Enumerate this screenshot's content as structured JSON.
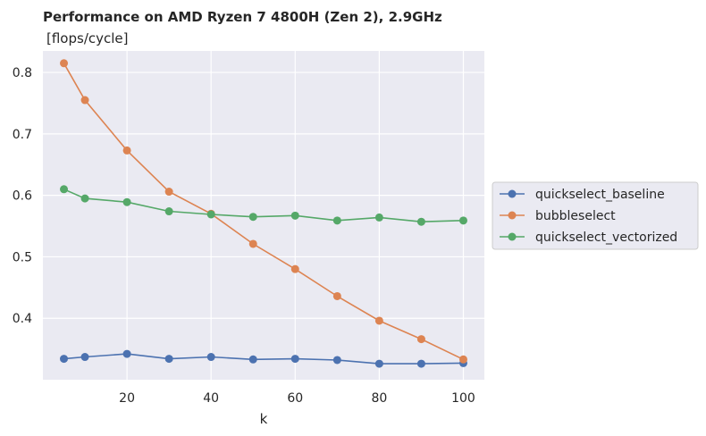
{
  "chart_data": {
    "type": "line",
    "title": "Performance on AMD Ryzen 7 4800H (Zen 2),  2.9GHz",
    "subtitle": "[flops/cycle]",
    "xlabel": "k",
    "ylabel": "",
    "xlim": [
      0,
      105
    ],
    "ylim": [
      0.3,
      0.835
    ],
    "xticks": [
      20,
      40,
      60,
      80,
      100
    ],
    "yticks": [
      0.4,
      0.5,
      0.6,
      0.7,
      0.8
    ],
    "grid": true,
    "legend_position": "center-right outside",
    "x": [
      5,
      10,
      20,
      30,
      40,
      50,
      60,
      70,
      80,
      90,
      100
    ],
    "series": [
      {
        "name": "quickselect_baseline",
        "color": "#4c72b0",
        "values": [
          0.334,
          0.337,
          0.342,
          0.334,
          0.337,
          0.333,
          0.334,
          0.332,
          0.326,
          0.326,
          0.327
        ]
      },
      {
        "name": "bubbleselect",
        "color": "#dd8452",
        "values": [
          0.815,
          0.755,
          0.673,
          0.606,
          0.57,
          0.521,
          0.48,
          0.436,
          0.396,
          0.366,
          0.333
        ]
      },
      {
        "name": "quickselect_vectorized",
        "color": "#55a868",
        "values": [
          0.61,
          0.595,
          0.589,
          0.574,
          0.569,
          0.565,
          0.567,
          0.559,
          0.564,
          0.557,
          0.559
        ]
      }
    ]
  }
}
